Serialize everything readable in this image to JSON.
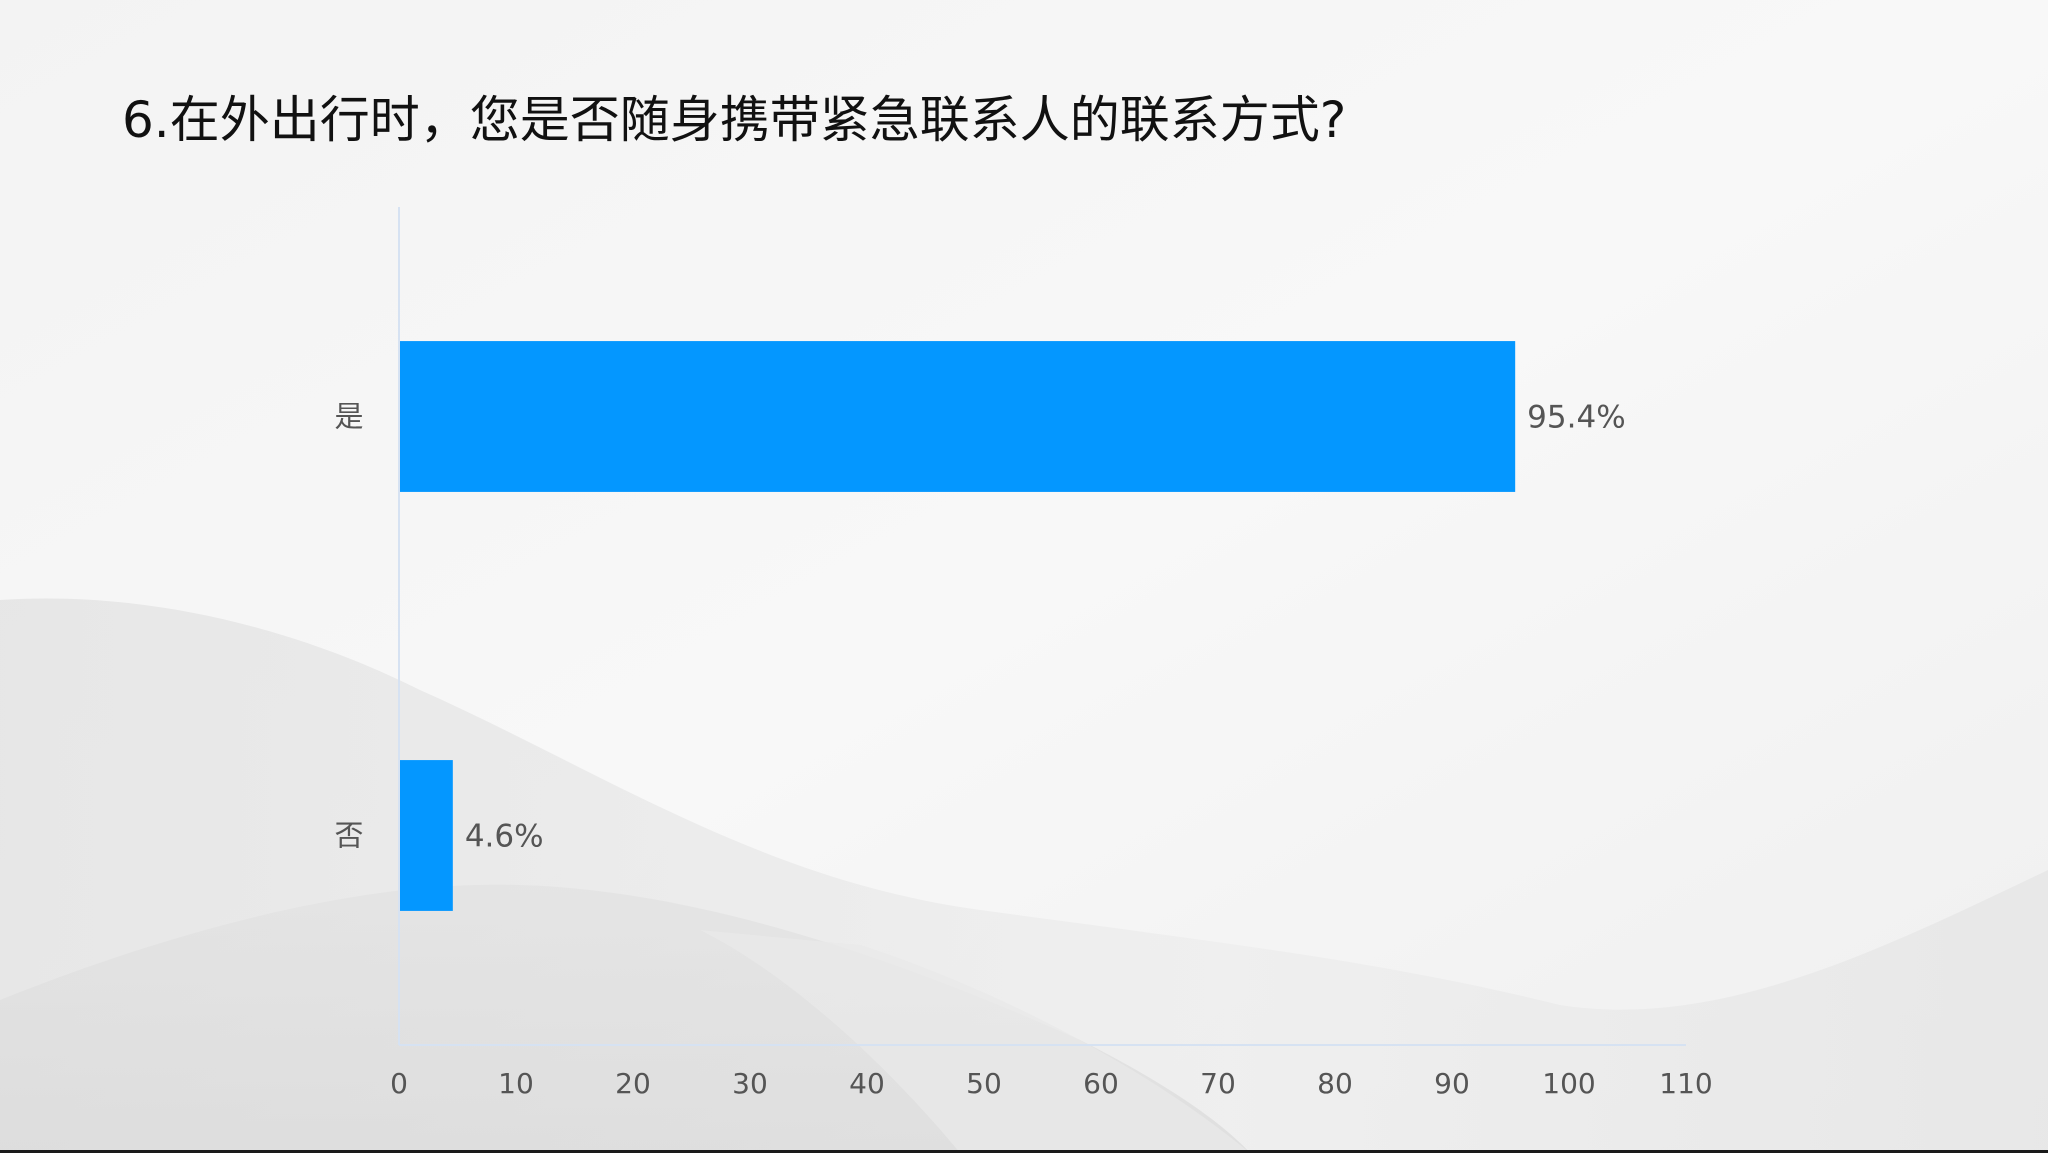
{
  "title": "6.在外出行时，您是否随身携带紧急联系人的联系方式?",
  "colors": {
    "bar": "#0497FF",
    "axis": "#D6E2F2",
    "text": "#555555"
  },
  "chart_data": {
    "type": "bar",
    "orientation": "horizontal",
    "categories": [
      "是",
      "否"
    ],
    "values": [
      95.4,
      4.6
    ],
    "value_labels": [
      "95.4%",
      "4.6%"
    ],
    "xlim": [
      0,
      110
    ],
    "xticks": [
      "0",
      "10",
      "20",
      "30",
      "40",
      "50",
      "60",
      "70",
      "80",
      "90",
      "100",
      "110"
    ],
    "grid": false,
    "legend": false
  }
}
